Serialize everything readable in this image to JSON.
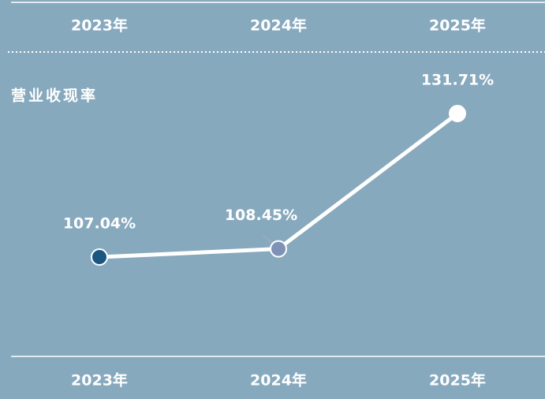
{
  "chart_data": {
    "type": "line",
    "title": "营业收现率",
    "categories": [
      "2023年",
      "2024年",
      "2025年"
    ],
    "values": [
      107.04,
      108.45,
      131.71
    ],
    "value_labels": [
      "107.04%",
      "108.45%",
      "131.71%"
    ],
    "color": "#ffffff",
    "point_colors": [
      "#1a5682",
      "#7e91b6",
      "#ffffff"
    ]
  }
}
